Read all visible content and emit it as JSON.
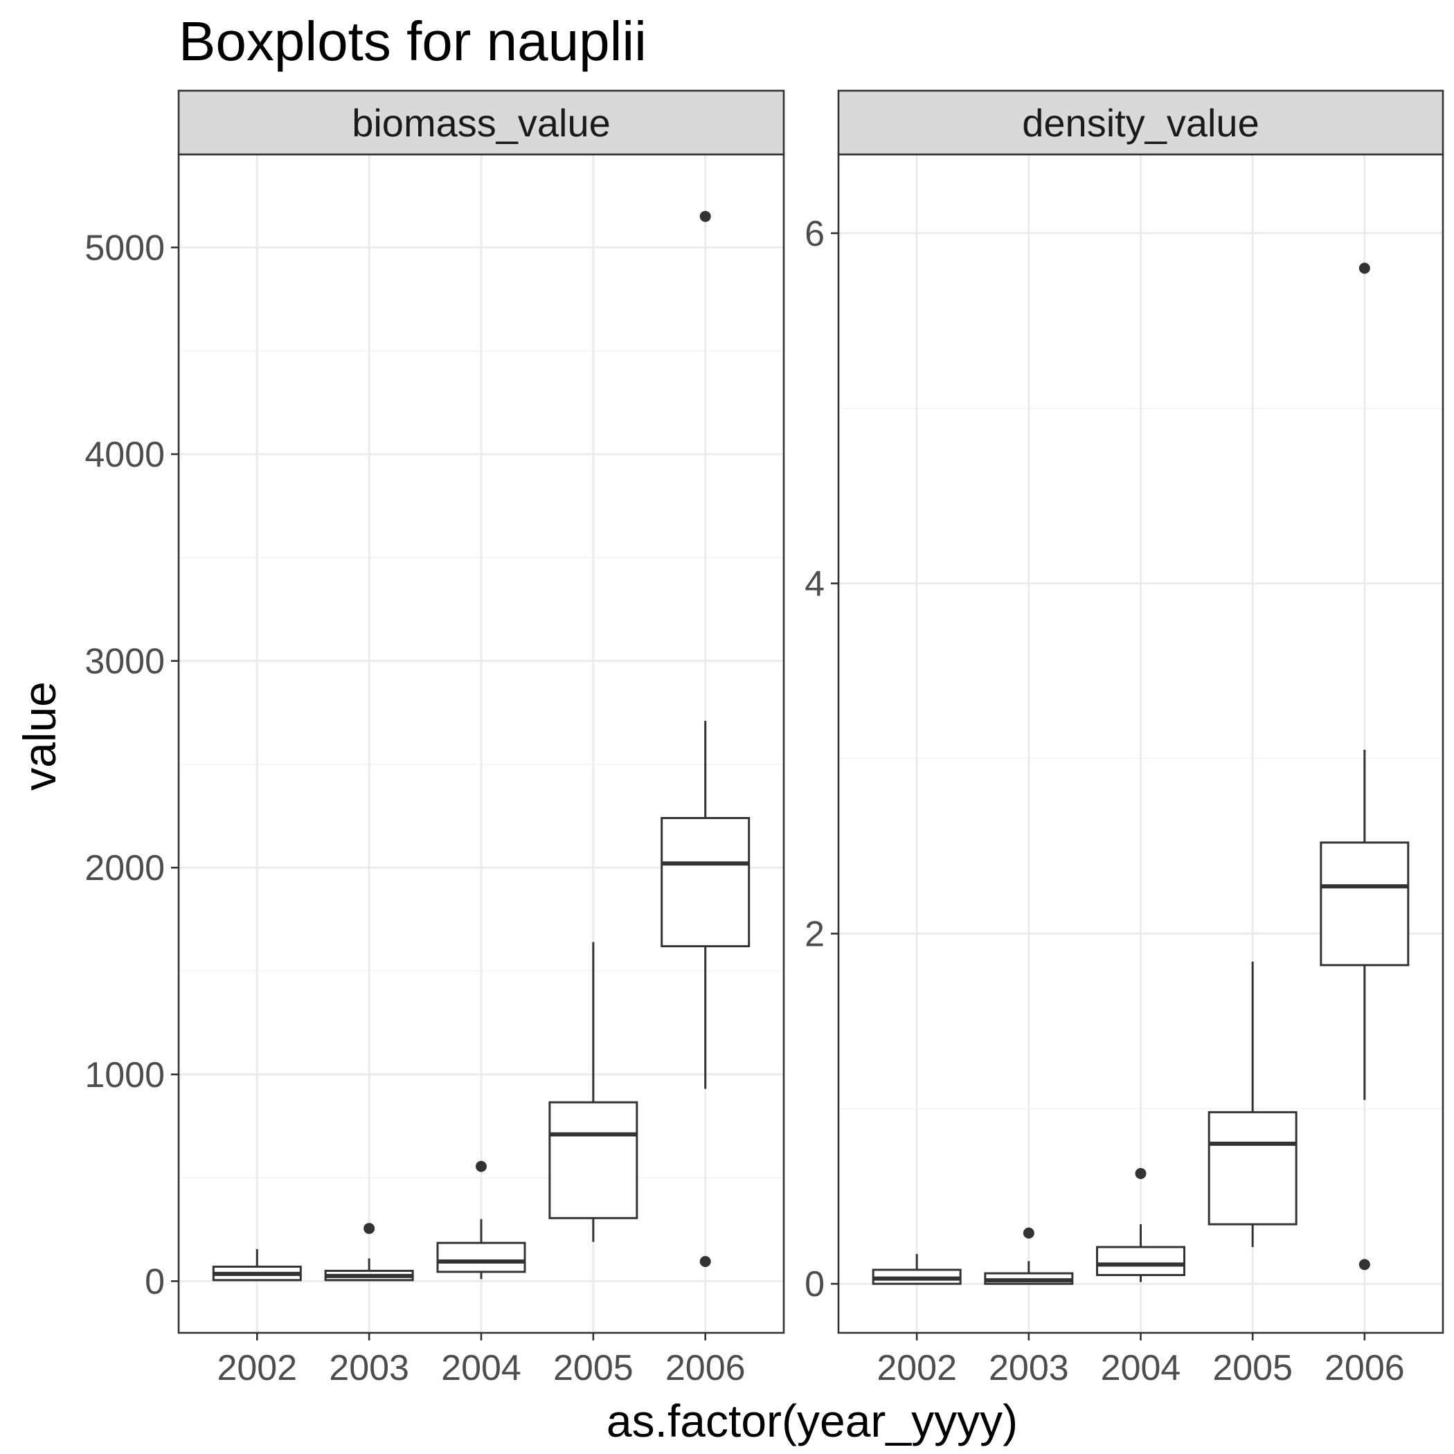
{
  "chart_data": {
    "type": "boxplot",
    "title": "Boxplots for nauplii",
    "xlabel": "as.factor(year_yyyy)",
    "ylabel": "value",
    "categories": [
      "2002",
      "2003",
      "2004",
      "2005",
      "2006"
    ],
    "grid": true,
    "legend": "none",
    "panels": [
      {
        "name": "biomass_value",
        "ylim": [
          -250,
          5450
        ],
        "yticks": [
          0,
          1000,
          2000,
          3000,
          4000,
          5000
        ],
        "ytick_labels": [
          "0",
          "1000",
          "2000",
          "3000",
          "4000",
          "5000"
        ],
        "boxes": [
          {
            "category": "2002",
            "whisker_low": 0,
            "q1": 5,
            "median": 35,
            "q3": 70,
            "whisker_high": 155,
            "outliers": []
          },
          {
            "category": "2003",
            "whisker_low": 0,
            "q1": 5,
            "median": 25,
            "q3": 50,
            "whisker_high": 110,
            "outliers": [
              255
            ]
          },
          {
            "category": "2004",
            "whisker_low": 10,
            "q1": 45,
            "median": 95,
            "q3": 185,
            "whisker_high": 300,
            "outliers": [
              555
            ]
          },
          {
            "category": "2005",
            "whisker_low": 190,
            "q1": 305,
            "median": 710,
            "q3": 865,
            "whisker_high": 1640,
            "outliers": []
          },
          {
            "category": "2006",
            "whisker_low": 930,
            "q1": 1620,
            "median": 2020,
            "q3": 2240,
            "whisker_high": 2710,
            "outliers": [
              5150,
              95
            ]
          }
        ]
      },
      {
        "name": "density_value",
        "ylim": [
          -0.28,
          6.45
        ],
        "yticks": [
          0,
          2,
          4,
          6
        ],
        "ytick_labels": [
          "0",
          "2",
          "4",
          "6"
        ],
        "boxes": [
          {
            "category": "2002",
            "whisker_low": 0,
            "q1": 0,
            "median": 0.03,
            "q3": 0.08,
            "whisker_high": 0.17,
            "outliers": []
          },
          {
            "category": "2003",
            "whisker_low": 0,
            "q1": 0,
            "median": 0.02,
            "q3": 0.06,
            "whisker_high": 0.13,
            "outliers": [
              0.29
            ]
          },
          {
            "category": "2004",
            "whisker_low": 0.01,
            "q1": 0.05,
            "median": 0.11,
            "q3": 0.21,
            "whisker_high": 0.34,
            "outliers": [
              0.63
            ]
          },
          {
            "category": "2005",
            "whisker_low": 0.21,
            "q1": 0.34,
            "median": 0.8,
            "q3": 0.98,
            "whisker_high": 1.84,
            "outliers": []
          },
          {
            "category": "2006",
            "whisker_low": 1.05,
            "q1": 1.82,
            "median": 2.27,
            "q3": 2.52,
            "whisker_high": 3.05,
            "outliers": [
              5.8,
              0.11
            ]
          }
        ]
      }
    ]
  }
}
